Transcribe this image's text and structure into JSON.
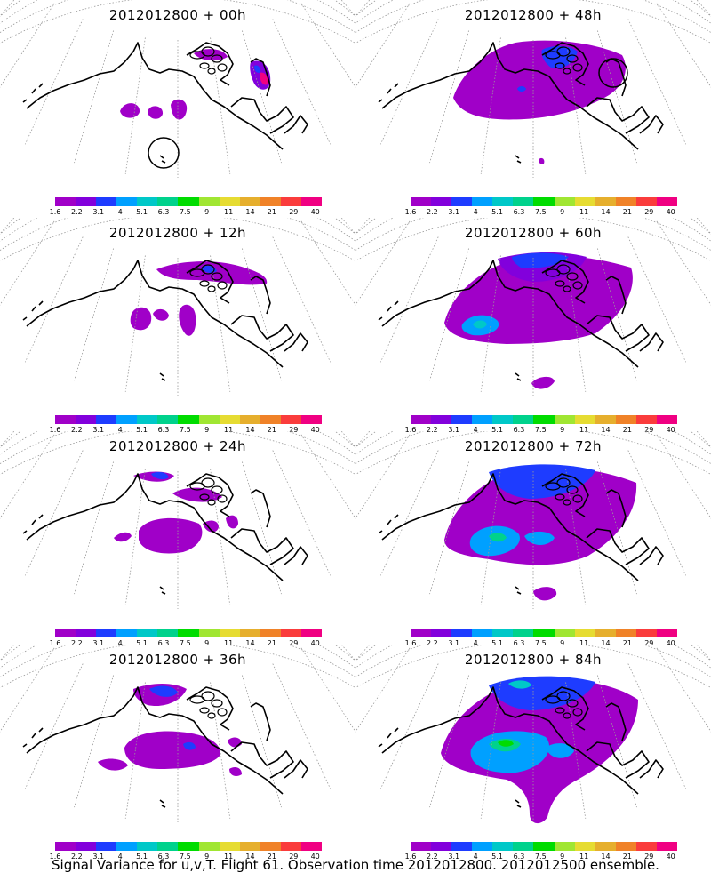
{
  "caption": "Signal Variance for u,v,T. Flight 61. Observation time 2012012800. 2012012500 ensemble.",
  "colorbar": {
    "labels": [
      "1.6",
      "2.2",
      "3.1",
      "4",
      "5.1",
      "6.3",
      "7.5",
      "9",
      "11",
      "14",
      "21",
      "29",
      "40"
    ],
    "colors": [
      "#a000c8",
      "#8200dc",
      "#1e3cff",
      "#00a0ff",
      "#00c8c8",
      "#00d28c",
      "#00dc00",
      "#a0e632",
      "#e6dc32",
      "#e6af2d",
      "#f08228",
      "#fa3c3c",
      "#f00082"
    ]
  },
  "panels": [
    {
      "title": "2012012800 + 00h"
    },
    {
      "title": "2012012800 + 48h"
    },
    {
      "title": "2012012800 + 12h"
    },
    {
      "title": "2012012800 + 60h"
    },
    {
      "title": "2012012800 + 24h"
    },
    {
      "title": "2012012800 + 72h"
    },
    {
      "title": "2012012800 + 36h"
    },
    {
      "title": "2012012800 + 84h"
    }
  ]
}
